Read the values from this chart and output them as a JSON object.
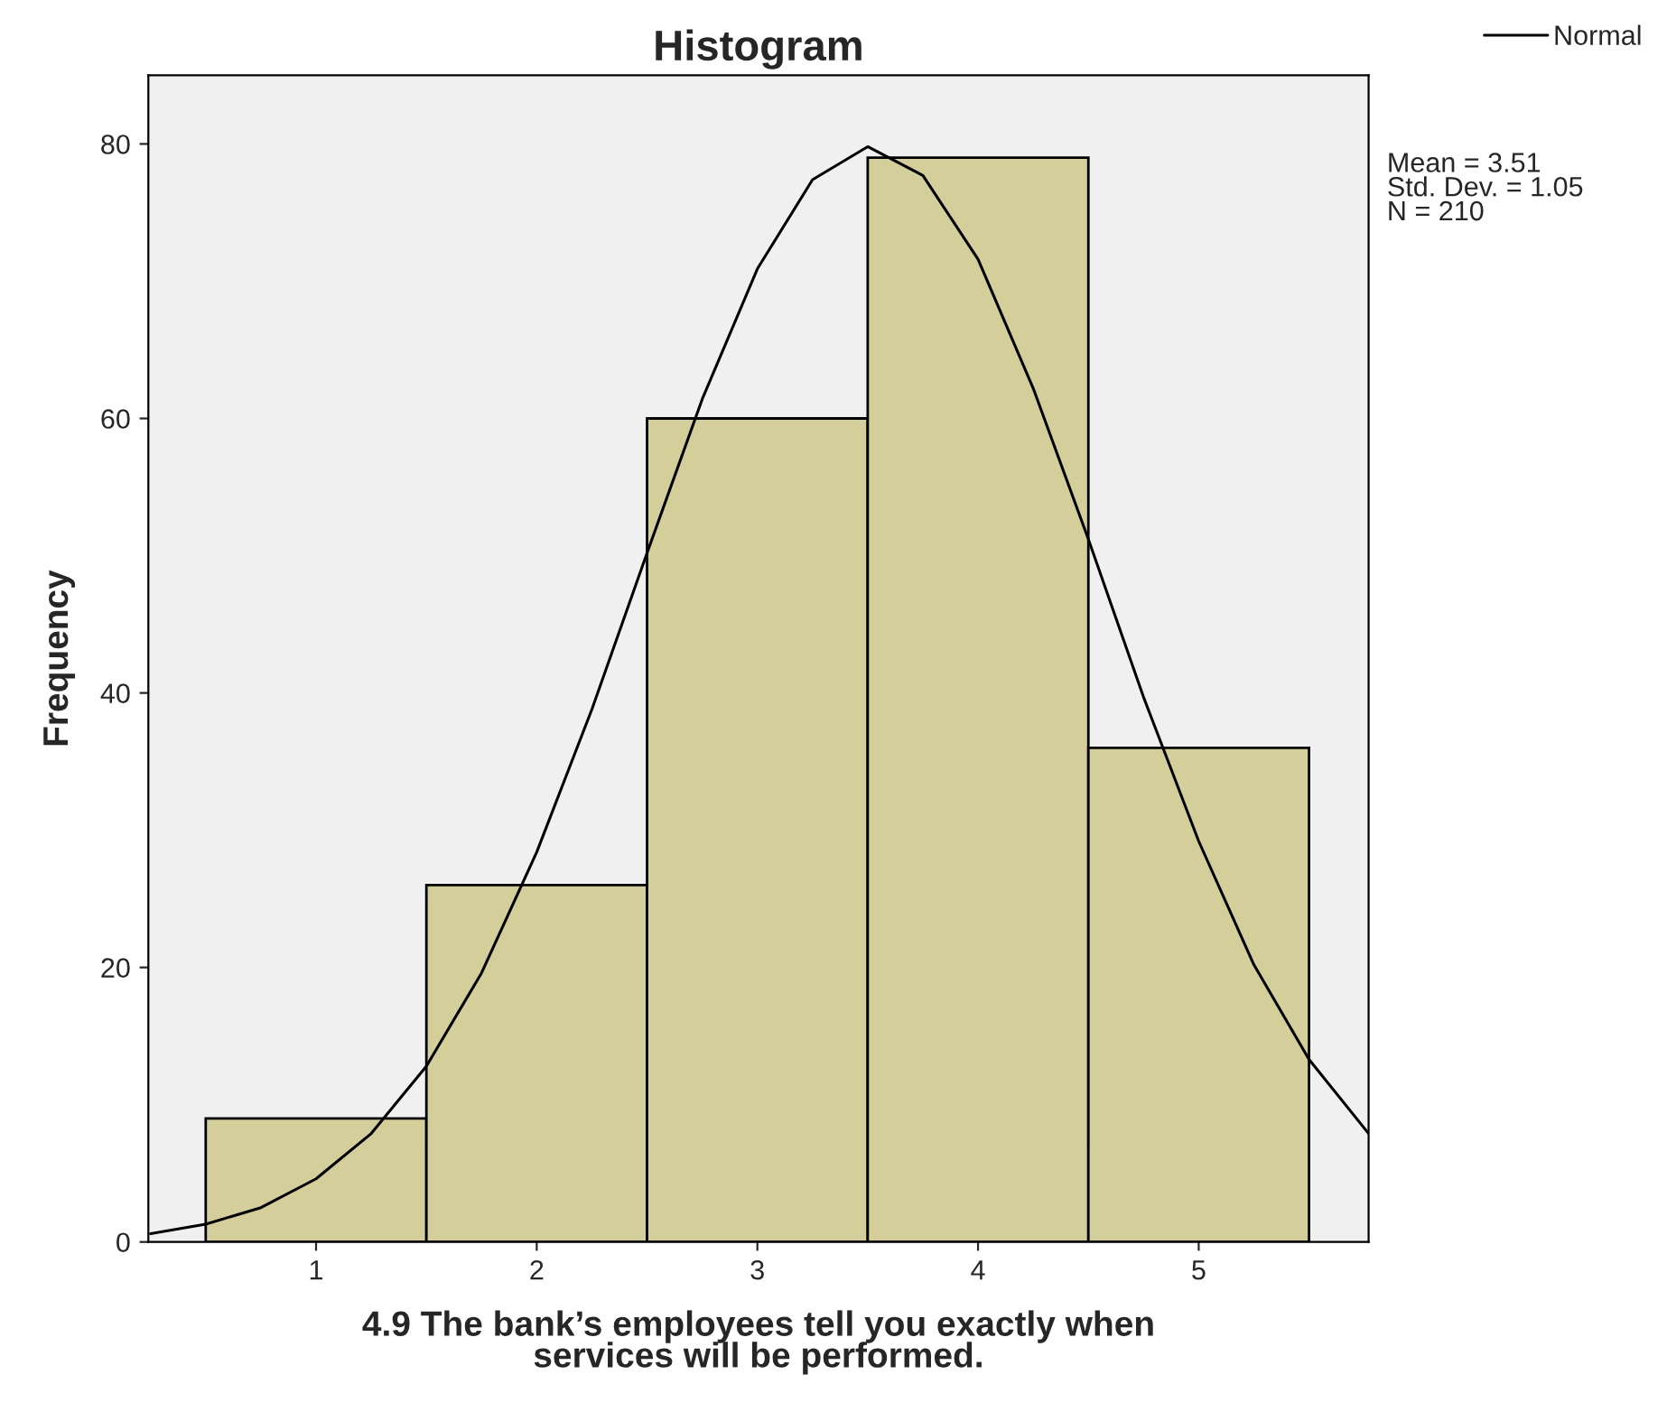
{
  "chart_data": {
    "type": "histogram",
    "title": "Histogram",
    "xlabel": "4.9 The bank’s employees tell you exactly when\nservices will be performed.",
    "ylabel": "Frequency",
    "bins": [
      0.5,
      1.5,
      2.5,
      3.5,
      4.5,
      5.5
    ],
    "values": [
      9,
      26,
      60,
      79,
      36
    ],
    "color": "#d3ce9a",
    "series": [
      {
        "name": "Normal",
        "type": "line",
        "color": "#000000",
        "x": [
          0.25,
          0.5,
          0.75,
          1.0,
          1.25,
          1.5,
          1.75,
          2.0,
          2.25,
          2.5,
          2.75,
          3.0,
          3.25,
          3.5,
          3.75,
          4.0,
          4.25,
          4.5,
          4.75,
          5.0,
          5.25,
          5.5,
          5.77
        ],
        "values": [
          0.6,
          1.3,
          2.5,
          4.6,
          7.9,
          12.8,
          19.6,
          28.4,
          38.8,
          50.2,
          61.4,
          70.9,
          77.4,
          79.8,
          77.7,
          71.6,
          62.2,
          51.2,
          39.7,
          29.2,
          20.2,
          13.3,
          7.9
        ]
      }
    ],
    "xlim": [
      0.24,
      5.77
    ],
    "ylim": [
      0,
      85
    ],
    "xticks": [
      1,
      2,
      3,
      4,
      5
    ],
    "yticks": [
      0,
      20,
      40,
      60,
      80
    ],
    "annotations": [
      "Mean = 3.51",
      "Std. Dev. = 1.05",
      "N = 210"
    ],
    "grid": false,
    "legend": "top right"
  }
}
